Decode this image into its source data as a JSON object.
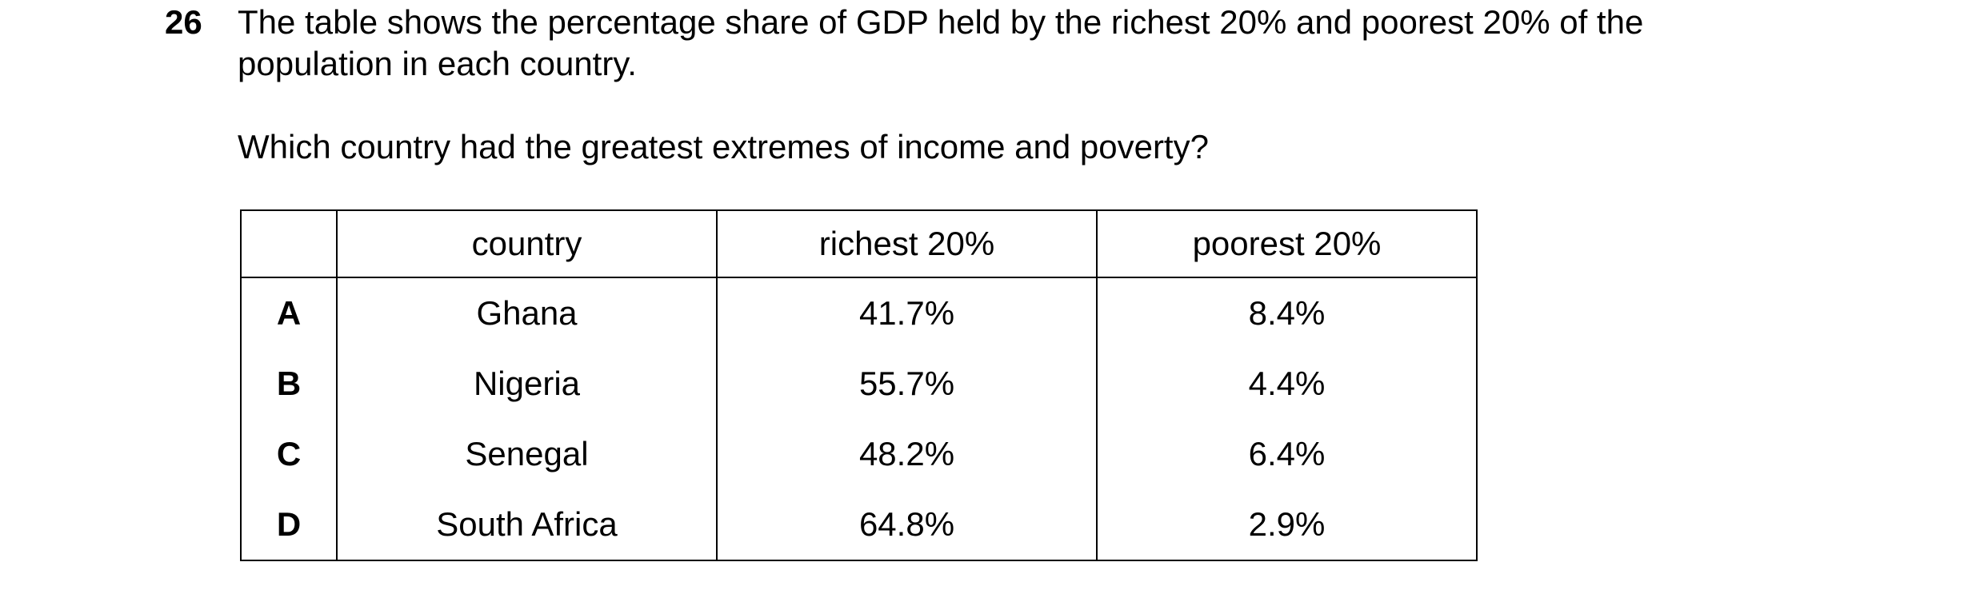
{
  "question": {
    "number": "26",
    "stem_line1": "The table shows the percentage share of GDP held by the richest 20% and poorest 20% of the",
    "stem_line2": "population in each country.",
    "prompt": "Which country had the greatest extremes of income and poverty?"
  },
  "table": {
    "headers": [
      "",
      "country",
      "richest 20%",
      "poorest 20%"
    ],
    "rows": [
      {
        "key": "A",
        "country": "Ghana",
        "richest": "41.7%",
        "poorest": "8.4%"
      },
      {
        "key": "B",
        "country": "Nigeria",
        "richest": "55.7%",
        "poorest": "4.4%"
      },
      {
        "key": "C",
        "country": "Senegal",
        "richest": "48.2%",
        "poorest": "6.4%"
      },
      {
        "key": "D",
        "country": "South Africa",
        "richest": "64.8%",
        "poorest": "2.9%"
      }
    ]
  }
}
